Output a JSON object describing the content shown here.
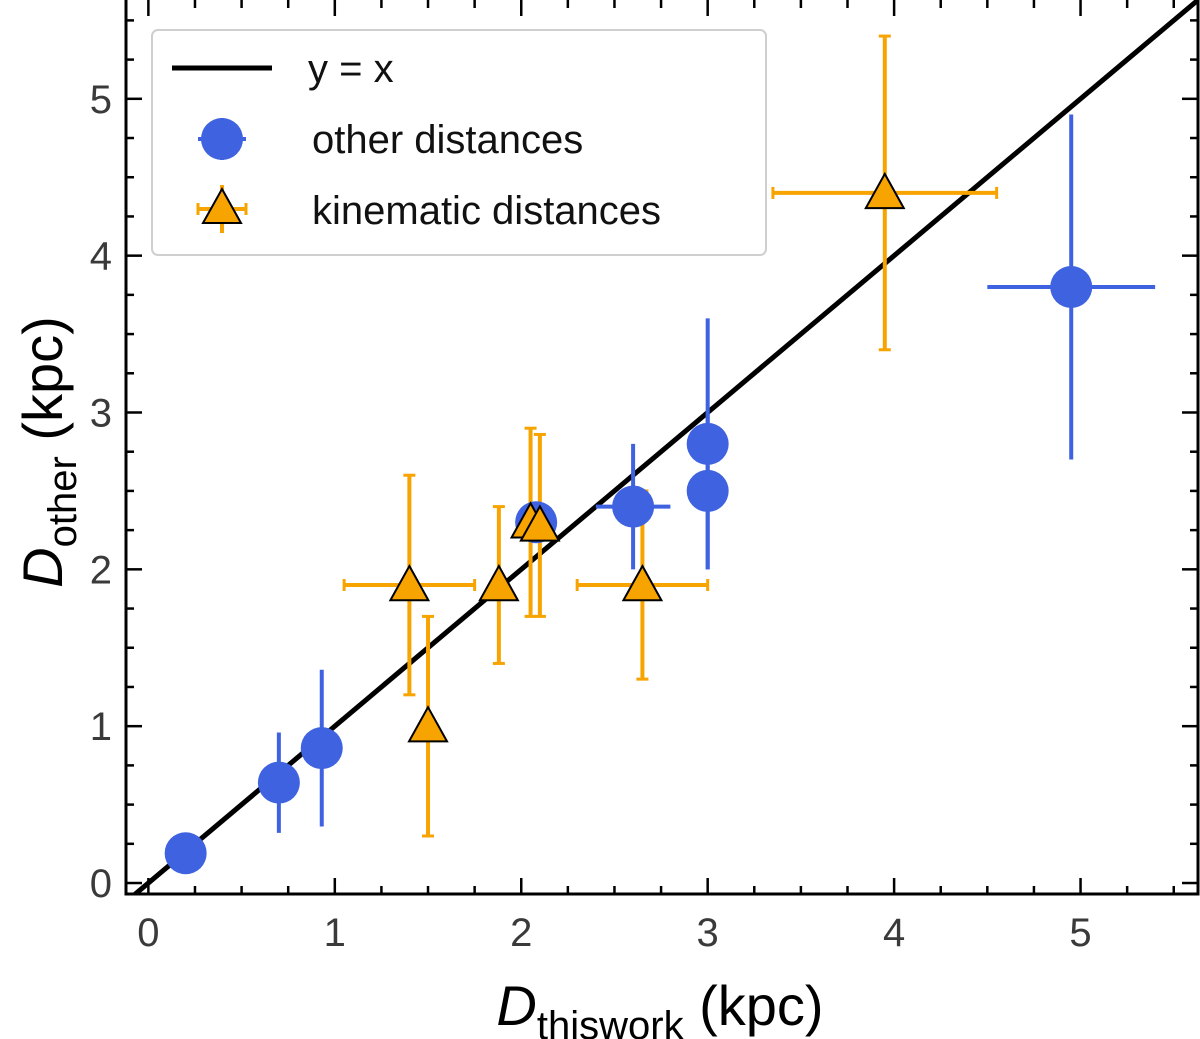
{
  "chart_data": {
    "type": "scatter",
    "title": "",
    "xlabel": {
      "main": "D",
      "sub": "thiswork",
      "unit": " (kpc)"
    },
    "ylabel": {
      "main": "D",
      "sub": "other",
      "unit": " (kpc)"
    },
    "xlim": [
      -0.12,
      5.63
    ],
    "ylim": [
      -0.07,
      5.63
    ],
    "xticks": [
      0,
      1,
      2,
      3,
      4,
      5
    ],
    "yticks": [
      0,
      1,
      2,
      3,
      4,
      5
    ],
    "xtick_labels": [
      "0",
      "1",
      "2",
      "3",
      "4",
      "5"
    ],
    "ytick_labels": [
      "0",
      "1",
      "2",
      "3",
      "4",
      "5"
    ],
    "grid": false,
    "legend_position": "top-left",
    "colors": {
      "other": "#3f62e0",
      "kinematic": "#f7a400",
      "line": "#000000"
    },
    "series": [
      {
        "name": "other distances",
        "marker": "circle",
        "points": [
          {
            "x": 0.2,
            "y": 0.19,
            "xerr": 0,
            "yerr": 0
          },
          {
            "x": 0.7,
            "y": 0.64,
            "xerr": 0,
            "yerr": 0.32
          },
          {
            "x": 0.93,
            "y": 0.86,
            "xerr": 0,
            "yerr": 0.5
          },
          {
            "x": 2.08,
            "y": 2.3,
            "xerr": 0,
            "yerr": 0
          },
          {
            "x": 2.6,
            "y": 2.4,
            "xerr": 0.2,
            "yerr": 0.4
          },
          {
            "x": 3.0,
            "y": 2.8,
            "xerr": 0,
            "yerr": 0.8
          },
          {
            "x": 3.0,
            "y": 2.5,
            "xerr": 0,
            "yerr": 0.5
          },
          {
            "x": 4.95,
            "y": 3.8,
            "xerr": 0.45,
            "yerr": 1.1
          }
        ]
      },
      {
        "name": "kinematic distances",
        "marker": "triangle",
        "points": [
          {
            "x": 1.4,
            "y": 1.9,
            "xerr": 0.35,
            "yerr": 0.7
          },
          {
            "x": 1.5,
            "y": 1.0,
            "xerr": 0,
            "yerr": 0.7
          },
          {
            "x": 1.88,
            "y": 1.9,
            "xerr": 0,
            "yerr": 0.5
          },
          {
            "x": 2.05,
            "y": 2.3,
            "xerr": 0,
            "yerr": 0.6
          },
          {
            "x": 2.1,
            "y": 2.28,
            "xerr": 0,
            "yerr": 0.58
          },
          {
            "x": 2.65,
            "y": 1.9,
            "xerr": 0.35,
            "yerr": 0.6
          },
          {
            "x": 3.95,
            "y": 4.4,
            "xerr": 0.6,
            "yerr": 1.0
          }
        ]
      }
    ],
    "reference_line": {
      "name": "y = x",
      "slope": 1,
      "intercept": 0
    }
  }
}
